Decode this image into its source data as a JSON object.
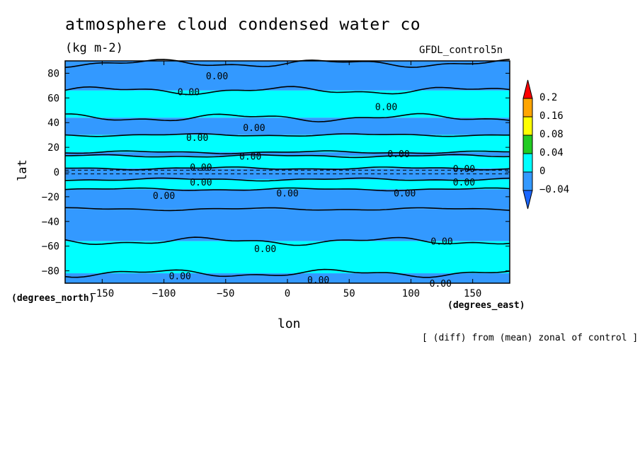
{
  "chart_data": {
    "type": "heatmap",
    "title": "atmosphere cloud condensed water co",
    "units": "(kg m-2)",
    "source": "GFDL_control5n",
    "xlabel": "lon",
    "ylabel": "lat",
    "x_units": "(degrees_east)",
    "y_units": "(degrees_north)",
    "note": "[ (diff) from (mean) zonal of control ]",
    "xlim": [
      -180,
      180
    ],
    "ylim": [
      -90,
      90
    ],
    "xticks": [
      -150,
      -100,
      -50,
      0,
      50,
      100,
      150
    ],
    "yticks": [
      80,
      60,
      40,
      20,
      0,
      -20,
      -40,
      -60,
      -80
    ],
    "contour_label": "0.00",
    "colorbar": {
      "levels": [
        "0.2",
        "0.16",
        "0.08",
        "0.04",
        "0",
        "-0.04"
      ],
      "colors": [
        "#ff0000",
        "#ffa500",
        "#ffff00",
        "#22cc22",
        "#00ffff",
        "#3399ff",
        "#1a66ff"
      ]
    },
    "bands": [
      {
        "from": 88,
        "to": 90,
        "color": "#3399ff"
      },
      {
        "from": 66,
        "to": 88,
        "color": "#3399ff"
      },
      {
        "from": 44,
        "to": 66,
        "color": "#00ffff"
      },
      {
        "from": 30,
        "to": 44,
        "color": "#3399ff"
      },
      {
        "from": 16,
        "to": 30,
        "color": "#00ffff"
      },
      {
        "from": 13,
        "to": 16,
        "color": "#3399ff"
      },
      {
        "from": 3,
        "to": 13,
        "color": "#00ffff"
      },
      {
        "from": -6,
        "to": 3,
        "color": "#3399ff"
      },
      {
        "from": -14,
        "to": -6,
        "color": "#00ffff"
      },
      {
        "from": -30,
        "to": -14,
        "color": "#3399ff"
      },
      {
        "from": -56,
        "to": -30,
        "color": "#3399ff"
      },
      {
        "from": -82,
        "to": -56,
        "color": "#00ffff"
      },
      {
        "from": -90,
        "to": -82,
        "color": "#3399ff"
      }
    ],
    "contour_labels": [
      {
        "lon": -57,
        "lat": 78
      },
      {
        "lon": -80,
        "lat": 65
      },
      {
        "lon": 80,
        "lat": 53
      },
      {
        "lon": -27,
        "lat": 36
      },
      {
        "lon": -73,
        "lat": 28
      },
      {
        "lon": -30,
        "lat": 13
      },
      {
        "lon": 90,
        "lat": 15
      },
      {
        "lon": -70,
        "lat": 4
      },
      {
        "lon": 143,
        "lat": 3
      },
      {
        "lon": -70,
        "lat": -8
      },
      {
        "lon": 143,
        "lat": -8
      },
      {
        "lon": -100,
        "lat": -19
      },
      {
        "lon": 0,
        "lat": -17
      },
      {
        "lon": 95,
        "lat": -17
      },
      {
        "lon": 125,
        "lat": -56
      },
      {
        "lon": -18,
        "lat": -62
      },
      {
        "lon": -87,
        "lat": -84
      },
      {
        "lon": 25,
        "lat": -87
      },
      {
        "lon": 124,
        "lat": -90
      }
    ]
  }
}
